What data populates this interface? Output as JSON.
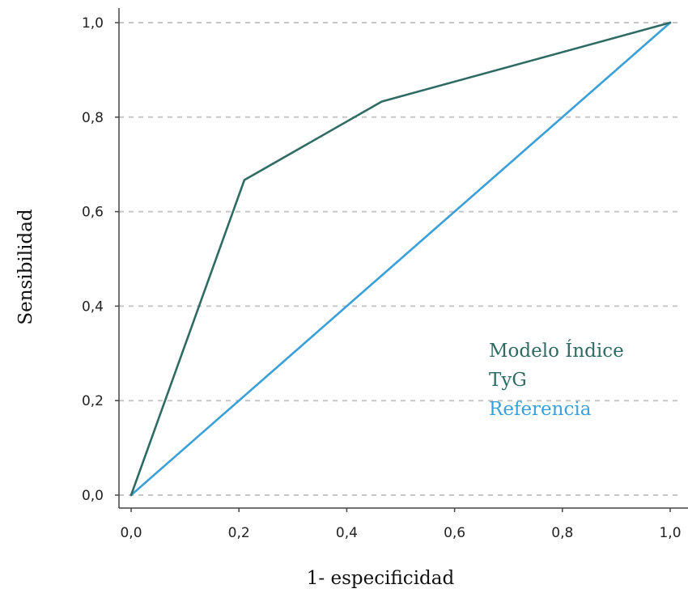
{
  "chart_data": {
    "type": "line",
    "title": "",
    "xlabel": "1- especificidad",
    "ylabel": "Sensibilidad",
    "xlim": [
      0,
      1
    ],
    "ylim": [
      0,
      1
    ],
    "x_ticks": [
      0,
      0.2,
      0.4,
      0.6,
      0.8,
      1.0
    ],
    "y_ticks": [
      0,
      0.2,
      0.4,
      0.6,
      0.8,
      1.0
    ],
    "x_tick_labels": [
      "0,0",
      "0,2",
      "0,4",
      "0,6",
      "0,8",
      "1,0"
    ],
    "y_tick_labels": [
      "0,0",
      "0,2",
      "0,4",
      "0,6",
      "0,8",
      "1,0"
    ],
    "grid": "horizontal-dashed",
    "legend_position": "center-right",
    "series": [
      {
        "name": "Modelo Índice TyG",
        "legend_lines": [
          "Modelo Índice",
          "TyG"
        ],
        "color": "#2f6b63",
        "points": [
          [
            0.0,
            0.0
          ],
          [
            0.21,
            0.667
          ],
          [
            0.465,
            0.833
          ],
          [
            1.0,
            1.0
          ]
        ]
      },
      {
        "name": "Referencia",
        "legend_lines": [
          "Referencia"
        ],
        "color": "#3aa0d8",
        "points": [
          [
            0.0,
            0.0
          ],
          [
            1.0,
            1.0
          ]
        ]
      }
    ]
  }
}
